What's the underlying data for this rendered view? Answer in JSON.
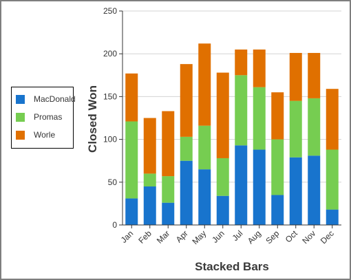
{
  "chart_data": {
    "type": "bar",
    "stacked": true,
    "categories": [
      "Jan",
      "Feb",
      "Mar",
      "Apr",
      "May",
      "Jun",
      "Jul",
      "Aug",
      "Sep",
      "Oct",
      "Nov",
      "Dec"
    ],
    "series": [
      {
        "name": "MacDonald",
        "color": "#1874cd",
        "values": [
          31,
          45,
          26,
          75,
          65,
          34,
          93,
          88,
          35,
          79,
          81,
          18
        ]
      },
      {
        "name": "Promas",
        "color": "#76cd51",
        "values": [
          90,
          15,
          31,
          28,
          51,
          44,
          82,
          73,
          65,
          66,
          67,
          70
        ]
      },
      {
        "name": "Worle",
        "color": "#e07000",
        "values": [
          56,
          65,
          76,
          85,
          96,
          100,
          30,
          44,
          55,
          56,
          53,
          71
        ]
      }
    ],
    "xlabel": "Stacked Bars",
    "ylabel": "Closed Won",
    "ylim": [
      0,
      250
    ],
    "yticks": [
      0,
      50,
      100,
      150,
      200,
      250
    ],
    "grid": true,
    "legend_position": "left"
  }
}
